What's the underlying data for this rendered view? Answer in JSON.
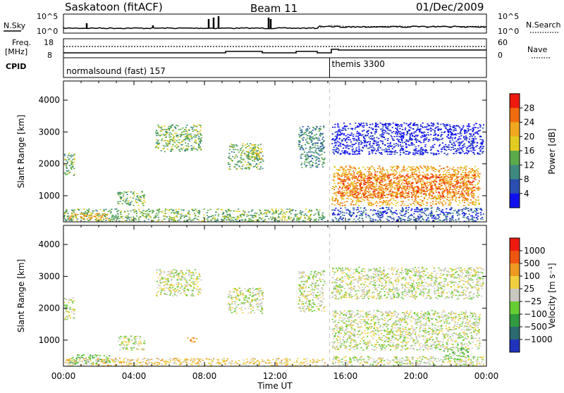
{
  "header": {
    "station": "Saskatoon (fitACF)",
    "beam": "Beam 11",
    "date": "01/Dec/2009"
  },
  "noise_panel": {
    "left_label": "N.Sky",
    "left_ticks": [
      "10^5",
      "10^0"
    ],
    "right_label": "N.Search",
    "right_ticks": [
      "10^5",
      "10^0"
    ]
  },
  "freq_panel": {
    "left_label_top": "Freq.",
    "left_label_bottom": "[MHz]",
    "left_ticks": [
      "18",
      "8"
    ],
    "right_label": "Nave",
    "right_ticks": [
      "60",
      "0"
    ]
  },
  "cpid_panel": {
    "label": "CPID",
    "modes": [
      {
        "name": "normalsound (fast) 157",
        "start_hour": 0
      },
      {
        "name": "themis 3300",
        "start_hour": 15.1
      }
    ]
  },
  "chart_data": [
    {
      "type": "heatmap",
      "name": "power",
      "ylabel": "Slant Range [km]",
      "xlabel": "Time UT",
      "xlim": [
        0,
        24
      ],
      "ylim": [
        180,
        4600
      ],
      "yticks": [
        "1000",
        "2000",
        "3000",
        "4000"
      ],
      "xticks": [
        "00:00",
        "04:00",
        "08:00",
        "12:00",
        "16:00",
        "20:00",
        "00:00"
      ],
      "colorbar": {
        "label": "Power [dB]",
        "ticks": [
          "4",
          "8",
          "12",
          "16",
          "20",
          "24",
          "28"
        ],
        "colors": [
          "#1010ee",
          "#2a4fb0",
          "#3f8a80",
          "#5aaa4a",
          "#e2cc22",
          "#f0a820",
          "#f06a10",
          "#ee1a10"
        ]
      },
      "regions": [
        {
          "t0": 0.0,
          "t1": 14.8,
          "r0": 200,
          "r1": 600,
          "level": 3
        },
        {
          "t0": 0.3,
          "t1": 2.5,
          "r0": 280,
          "r1": 470,
          "level": 5
        },
        {
          "t0": 0.0,
          "t1": 0.6,
          "r0": 1650,
          "r1": 2350,
          "level": 3
        },
        {
          "t0": 3.0,
          "t1": 4.6,
          "r0": 700,
          "r1": 1150,
          "level": 3
        },
        {
          "t0": 5.2,
          "t1": 7.8,
          "r0": 2400,
          "r1": 3250,
          "level": 3
        },
        {
          "t0": 9.3,
          "t1": 11.3,
          "r0": 1850,
          "r1": 2650,
          "level": 3
        },
        {
          "t0": 10.6,
          "t1": 11.2,
          "r0": 2150,
          "r1": 2500,
          "level": 4
        },
        {
          "t0": 13.3,
          "t1": 14.8,
          "r0": 1900,
          "r1": 3200,
          "level": 2
        },
        {
          "t0": 15.2,
          "t1": 23.6,
          "r0": 700,
          "r1": 1950,
          "level": 5
        },
        {
          "t0": 15.5,
          "t1": 23.3,
          "r0": 950,
          "r1": 1700,
          "level": 6
        },
        {
          "t0": 15.2,
          "t1": 23.8,
          "r0": 2300,
          "r1": 3300,
          "level": 0
        },
        {
          "t0": 15.2,
          "t1": 23.8,
          "r0": 200,
          "r1": 650,
          "level": 1
        }
      ]
    },
    {
      "type": "heatmap",
      "name": "velocity",
      "ylabel": "Slant Range [km]",
      "xlabel": "Time UT",
      "xlim": [
        0,
        24
      ],
      "ylim": [
        180,
        4600
      ],
      "yticks": [
        "1000",
        "2000",
        "3000",
        "4000"
      ],
      "xticks": [
        "00:00",
        "04:00",
        "08:00",
        "12:00",
        "16:00",
        "20:00",
        "00:00"
      ],
      "colorbar": {
        "label": "Velocity [m s⁻¹]",
        "ticks": [
          "1000",
          "500",
          "100",
          "25",
          "−25",
          "−100",
          "−500",
          "−1000"
        ],
        "colors": [
          "#2233bb",
          "#2a6a70",
          "#2f9a40",
          "#66cc33",
          "#c8c8c0",
          "#f0d040",
          "#ee9922",
          "#ee5510",
          "#ee1a10"
        ]
      },
      "regions": [
        {
          "t0": 0.0,
          "t1": 14.8,
          "r0": 200,
          "r1": 450,
          "level": 5
        },
        {
          "t0": 0.3,
          "t1": 2.6,
          "r0": 260,
          "r1": 560,
          "level": 3
        },
        {
          "t0": 0.0,
          "t1": 0.6,
          "r0": 1650,
          "r1": 2350,
          "level": 4
        },
        {
          "t0": 3.0,
          "t1": 4.6,
          "r0": 700,
          "r1": 1150,
          "level": 4
        },
        {
          "t0": 5.2,
          "t1": 7.8,
          "r0": 2400,
          "r1": 3250,
          "level": 4
        },
        {
          "t0": 7.0,
          "t1": 7.6,
          "r0": 950,
          "r1": 1100,
          "level": 6
        },
        {
          "t0": 9.3,
          "t1": 11.3,
          "r0": 1850,
          "r1": 2650,
          "level": 4
        },
        {
          "t0": 13.3,
          "t1": 14.8,
          "r0": 1900,
          "r1": 3200,
          "level": 4
        },
        {
          "t0": 15.2,
          "t1": 23.6,
          "r0": 700,
          "r1": 1950,
          "level": 4
        },
        {
          "t0": 15.2,
          "t1": 23.8,
          "r0": 2300,
          "r1": 3300,
          "level": 4
        },
        {
          "t0": 21.5,
          "t1": 23.0,
          "r0": 400,
          "r1": 800,
          "level": 3
        },
        {
          "t0": 15.2,
          "t1": 23.8,
          "r0": 200,
          "r1": 500,
          "level": 4
        }
      ]
    }
  ]
}
